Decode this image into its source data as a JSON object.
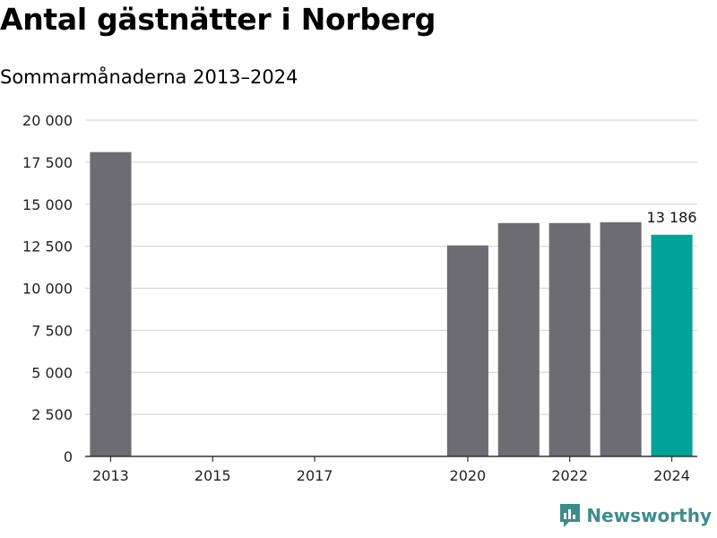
{
  "title": "Antal gästnätter i Norberg",
  "subtitle": "Sommarmånaderna 2013–2024",
  "brand": {
    "name": "Newsworthy",
    "icon": "chart-speech-bubble-icon",
    "color": "#3d8d8c"
  },
  "colors": {
    "bar": "#6d6c72",
    "highlight": "#00a39a",
    "grid": "#d9d9d9",
    "axis": "#333333"
  },
  "chart_data": {
    "type": "bar",
    "title": "Antal gästnätter i Norberg",
    "subtitle": "Sommarmånaderna 2013–2024",
    "xlabel": "",
    "ylabel": "",
    "x": [
      2013,
      2014,
      2015,
      2016,
      2017,
      2018,
      2019,
      2020,
      2021,
      2022,
      2023,
      2024
    ],
    "values": [
      18100,
      null,
      null,
      null,
      null,
      null,
      null,
      12550,
      13880,
      13880,
      13930,
      13186
    ],
    "highlight_index": 11,
    "data_labels": [
      {
        "index": 11,
        "text": "13 186"
      }
    ],
    "xticks": [
      "2013",
      "2015",
      "2017",
      "2020",
      "2022",
      "2024"
    ],
    "ylim": [
      0,
      20000
    ],
    "yticks": [
      "0",
      "2 500",
      "5 000",
      "7 500",
      "10 000",
      "12 500",
      "15 000",
      "17 500",
      "20 000"
    ],
    "grid": true,
    "legend": "none"
  }
}
